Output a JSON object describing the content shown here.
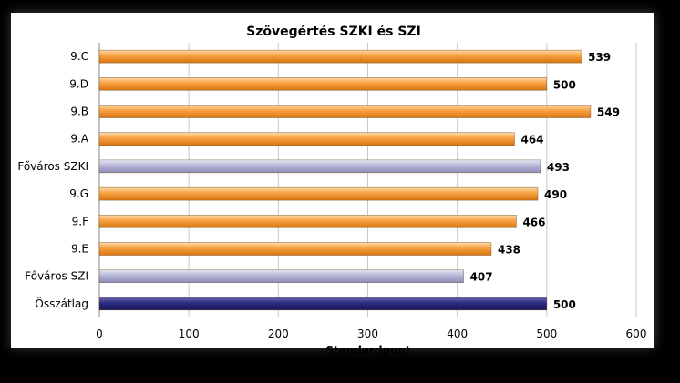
{
  "chart_data": {
    "type": "bar",
    "orientation": "horizontal",
    "title": "Szövegértés SZKI és SZI",
    "xlabel": "Standardpont",
    "ylabel": "",
    "xlim": [
      0,
      600
    ],
    "xticks": [
      0,
      100,
      200,
      300,
      400,
      500,
      600
    ],
    "grid": true,
    "categories": [
      "9.C",
      "9.D",
      "9.B",
      "9.A",
      "Főváros SZKI",
      "9.G",
      "9.F",
      "9.E",
      "Főváros SZI",
      "Összátlag"
    ],
    "values": [
      539,
      500,
      549,
      464,
      493,
      490,
      466,
      438,
      407,
      500
    ],
    "bar_colors": [
      "#F39A2E",
      "#F39A2E",
      "#F39A2E",
      "#F39A2E",
      "#A9A9CF",
      "#F39A2E",
      "#F39A2E",
      "#F39A2E",
      "#A9A9CF",
      "#24246E"
    ]
  }
}
